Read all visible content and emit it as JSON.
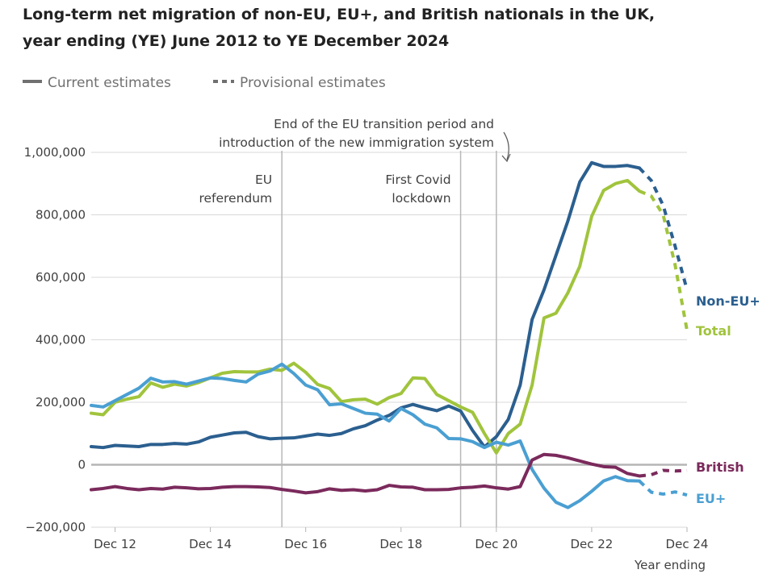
{
  "chart_data": {
    "type": "line",
    "title": "Long-term net migration of non-EU, EU+, and British nationals in the UK,",
    "subtitle": "year ending (YE) June 2012 to YE December 2024",
    "xlabel": "Year ending",
    "ylabel": "",
    "ylim": [
      -200000,
      1000000
    ],
    "grid": true,
    "legend": {
      "placement": "top-left",
      "entries": [
        "Current estimates",
        "Provisional estimates"
      ]
    },
    "x": [
      "Jun 12",
      "Sep 12",
      "Dec 12",
      "Mar 13",
      "Jun 13",
      "Sep 13",
      "Dec 13",
      "Mar 14",
      "Jun 14",
      "Sep 14",
      "Dec 14",
      "Mar 15",
      "Jun 15",
      "Sep 15",
      "Dec 15",
      "Mar 16",
      "Jun 16",
      "Sep 16",
      "Dec 16",
      "Mar 17",
      "Jun 17",
      "Sep 17",
      "Dec 17",
      "Mar 18",
      "Jun 18",
      "Sep 18",
      "Dec 18",
      "Mar 19",
      "Jun 19",
      "Sep 19",
      "Dec 19",
      "Mar 20",
      "Jun 20",
      "Sep 20",
      "Dec 20",
      "Mar 21",
      "Jun 21",
      "Sep 21",
      "Dec 21",
      "Mar 22",
      "Jun 22",
      "Sep 22",
      "Dec 22",
      "Mar 23",
      "Jun 23",
      "Sep 23",
      "Dec 23",
      "Mar 24",
      "Jun 24",
      "Sep 24",
      "Dec 24"
    ],
    "x_ticks": [
      "Dec 12",
      "Dec 14",
      "Dec 16",
      "Dec 18",
      "Dec 20",
      "Dec 22",
      "Dec 24"
    ],
    "y_ticks": [
      -200000,
      0,
      200000,
      400000,
      600000,
      800000,
      1000000
    ],
    "y_tick_labels": [
      "−200,000",
      "0",
      "200,000",
      "400,000",
      "600,000",
      "800,000",
      "1,000,000"
    ],
    "current_end_index": 46,
    "series": [
      {
        "name": "Non-EU+",
        "color": "#2b5f8f",
        "values": [
          58000,
          55000,
          62000,
          60000,
          58000,
          65000,
          65000,
          68000,
          66000,
          73000,
          88000,
          95000,
          102000,
          104000,
          90000,
          83000,
          85000,
          86000,
          92000,
          98000,
          94000,
          100000,
          115000,
          125000,
          143000,
          158000,
          182000,
          193000,
          182000,
          173000,
          188000,
          172000,
          110000,
          57000,
          90000,
          145000,
          255000,
          465000,
          560000,
          670000,
          780000,
          905000,
          967000,
          955000,
          955000,
          958000,
          950000,
          910000,
          830000,
          700000,
          560000
        ]
      },
      {
        "name": "Total",
        "color": "#a0c43c",
        "values": [
          165000,
          160000,
          200000,
          210000,
          218000,
          262000,
          248000,
          258000,
          252000,
          263000,
          278000,
          293000,
          298000,
          297000,
          297000,
          306000,
          302000,
          325000,
          296000,
          257000,
          244000,
          202000,
          208000,
          210000,
          194000,
          215000,
          228000,
          278000,
          276000,
          225000,
          205000,
          185000,
          168000,
          100000,
          38000,
          100000,
          130000,
          255000,
          470000,
          485000,
          550000,
          635000,
          795000,
          878000,
          900000,
          910000,
          876000,
          860000,
          800000,
          640000,
          430000
        ]
      },
      {
        "name": "EU+",
        "color": "#4a9fd2",
        "values": [
          190000,
          185000,
          205000,
          225000,
          245000,
          277000,
          265000,
          266000,
          258000,
          268000,
          278000,
          276000,
          270000,
          265000,
          290000,
          300000,
          322000,
          292000,
          255000,
          240000,
          192000,
          195000,
          180000,
          165000,
          162000,
          140000,
          180000,
          160000,
          130000,
          118000,
          84000,
          83000,
          74000,
          55000,
          72000,
          63000,
          76000,
          -15000,
          -75000,
          -120000,
          -137000,
          -115000,
          -85000,
          -52000,
          -38000,
          -51000,
          -52000,
          -88000,
          -94000,
          -87000,
          -97000
        ]
      },
      {
        "name": "British",
        "color": "#7b2a5c",
        "values": [
          -80000,
          -76000,
          -70000,
          -76000,
          -80000,
          -76000,
          -78000,
          -72000,
          -74000,
          -77000,
          -76000,
          -72000,
          -70000,
          -70000,
          -71000,
          -73000,
          -79000,
          -84000,
          -90000,
          -86000,
          -77000,
          -82000,
          -80000,
          -84000,
          -80000,
          -66000,
          -71000,
          -72000,
          -80000,
          -80000,
          -79000,
          -74000,
          -72000,
          -68000,
          -74000,
          -78000,
          -70000,
          15000,
          33000,
          30000,
          22000,
          12000,
          2000,
          -6000,
          -8000,
          -28000,
          -36000,
          -32000,
          -18000,
          -20000,
          -18000
        ]
      }
    ],
    "annotations": [
      {
        "x": "Jun 16",
        "text": [
          "EU",
          "referendum"
        ]
      },
      {
        "x": "Mar 20",
        "text": [
          "First Covid",
          "lockdown"
        ]
      },
      {
        "x": "Dec 20",
        "text": [
          "End of the EU transition period and",
          "introduction of the new immigration system"
        ]
      }
    ]
  }
}
